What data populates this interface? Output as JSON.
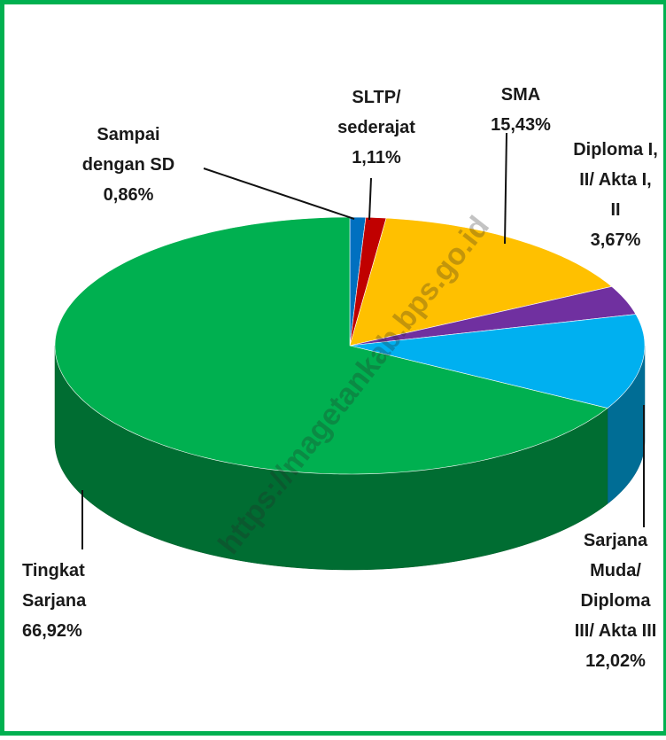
{
  "chart_data": {
    "type": "pie3d",
    "categories": [
      "Sampai\ndengan SD",
      "SLTP/\nsederajat",
      "SMA",
      "Diploma I,\nII/ Akta I,\nII",
      "Sarjana\nMuda/\nDiploma\nIII/ Akta III",
      "Tingkat\nSarjana"
    ],
    "values": [
      0.86,
      1.11,
      15.43,
      3.67,
      12.02,
      66.92
    ],
    "value_labels": [
      "0,86%",
      "1,11%",
      "15,43%",
      "3,67%",
      "12,02%",
      "66,92%"
    ],
    "colors": [
      "#0070c0",
      "#c00000",
      "#ffc000",
      "#7030a0",
      "#00b0f0",
      "#00b050"
    ],
    "watermark": "https://magetankab.bps.go.id"
  }
}
